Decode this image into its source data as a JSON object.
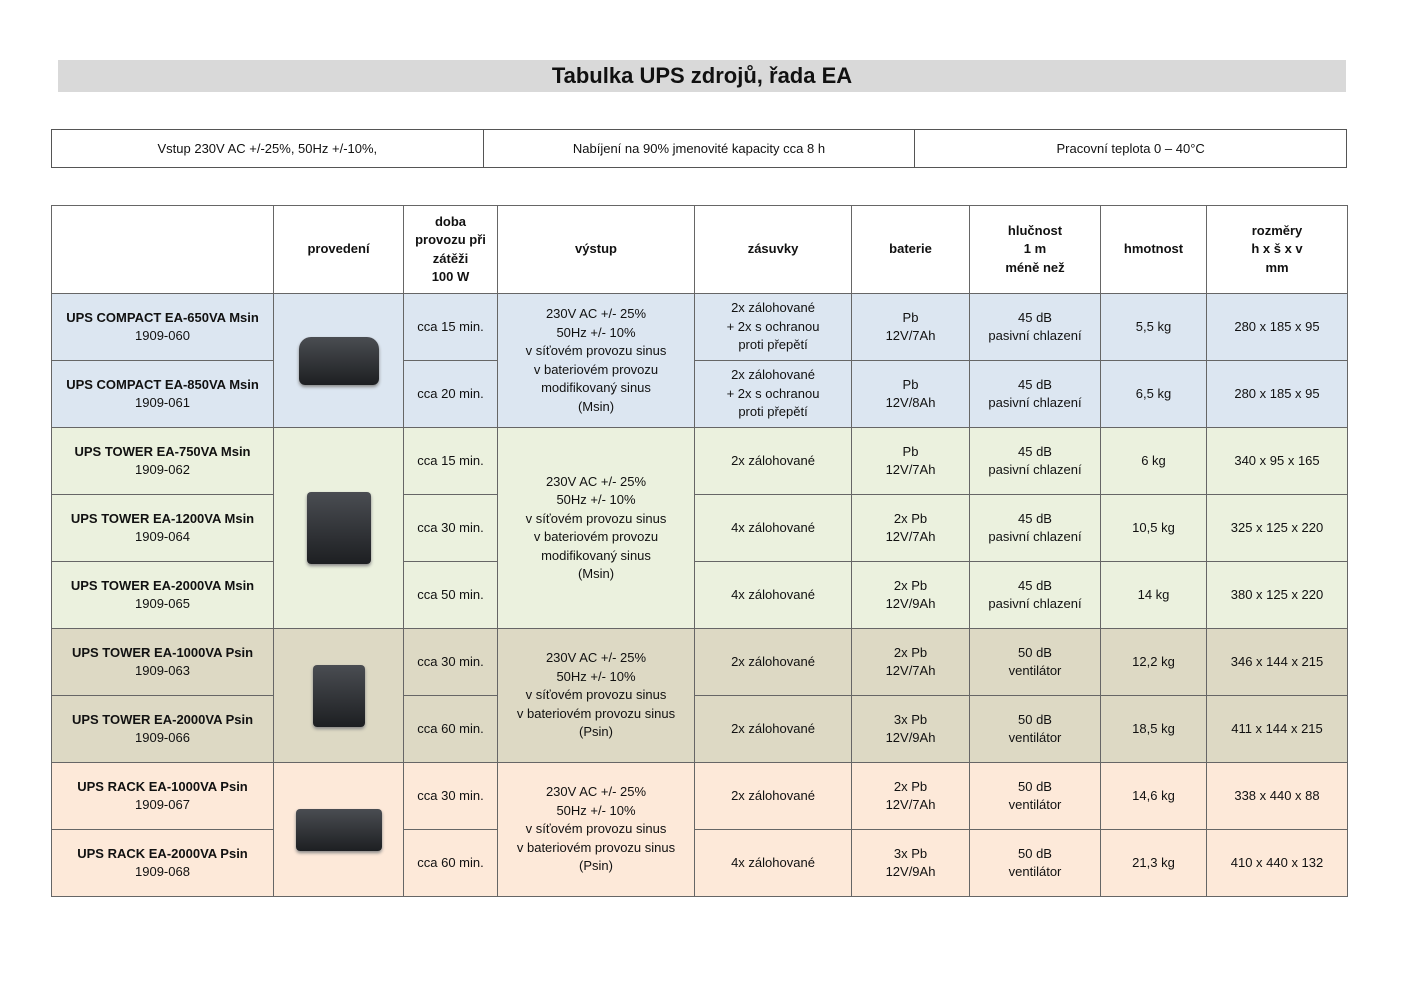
{
  "title": "Tabulka UPS zdrojů, řada EA",
  "info": [
    "Vstup 230V AC +/-25%, 50Hz +/-10%,",
    "Nabíjení na 90% jmenovité kapacity cca 8 h",
    "Pracovní teplota 0 – 40°C"
  ],
  "headers": [
    "",
    "provedení",
    "doba\nprovozu při\nzátěži\n100 W",
    "výstup",
    "zásuvky",
    "baterie",
    "hlučnost\n1 m\nméně než",
    "hmotnost",
    "rozměry\nh x š x v\nmm"
  ],
  "groups": [
    {
      "color": "#dce6f1",
      "image": "ups-compact-image",
      "output": "230V AC +/- 25%\n50Hz +/- 10%\nv síťovém provozu sinus\nv bateriovém provozu\nmodifikovaný sinus\n(Msin)",
      "rows": [
        {
          "name": "UPS COMPACT EA-650VA Msin",
          "code": "1909-060",
          "runtime": "cca 15 min.",
          "sockets": "2x zálohované\n+ 2x s ochranou\nproti přepětí",
          "battery": "Pb\n12V/7Ah",
          "noise": "45 dB\npasivní chlazení",
          "weight": "5,5 kg",
          "dims": "280 x 185 x 95"
        },
        {
          "name": "UPS COMPACT EA-850VA Msin",
          "code": "1909-061",
          "runtime": "cca 20 min.",
          "sockets": "2x zálohované\n+ 2x s ochranou\nproti přepětí",
          "battery": "Pb\n12V/8Ah",
          "noise": "45 dB\npasivní chlazení",
          "weight": "6,5 kg",
          "dims": "280 x 185 x 95"
        }
      ]
    },
    {
      "color": "#ebf1de",
      "image": "ups-tower-msin-image",
      "output": "230V AC +/- 25%\n50Hz +/- 10%\nv síťovém provozu sinus\nv bateriovém provozu\nmodifikovaný sinus\n(Msin)",
      "rows": [
        {
          "name": "UPS TOWER EA-750VA Msin",
          "code": "1909-062",
          "runtime": "cca 15 min.",
          "sockets": "2x zálohované",
          "battery": "Pb\n12V/7Ah",
          "noise": "45 dB\npasivní chlazení",
          "weight": "6 kg",
          "dims": "340 x 95 x 165"
        },
        {
          "name": "UPS TOWER EA-1200VA Msin",
          "code": "1909-064",
          "runtime": "cca 30 min.",
          "sockets": "4x zálohované",
          "battery": "2x  Pb\n12V/7Ah",
          "noise": "45 dB\npasivní chlazení",
          "weight": "10,5 kg",
          "dims": "325 x 125 x 220"
        },
        {
          "name": "UPS TOWER EA-2000VA Msin",
          "code": "1909-065",
          "runtime": "cca 50 min.",
          "sockets": "4x zálohované",
          "battery": "2x Pb\n12V/9Ah",
          "noise": "45 dB\npasivní chlazení",
          "weight": "14 kg",
          "dims": "380 x 125 x 220"
        }
      ]
    },
    {
      "color": "#ddd9c4",
      "image": "ups-tower-psin-image",
      "output": "230V AC +/- 25%\n50Hz +/- 10%\nv síťovém provozu sinus\nv bateriovém provozu sinus\n(Psin)",
      "rows": [
        {
          "name": "UPS TOWER EA-1000VA Psin",
          "code": "1909-063",
          "runtime": "cca 30 min.",
          "sockets": "2x zálohované",
          "battery": "2x  Pb\n12V/7Ah",
          "noise": "50 dB\nventilátor",
          "weight": "12,2 kg",
          "dims": "346 x 144 x 215"
        },
        {
          "name": "UPS TOWER EA-2000VA Psin",
          "code": "1909-066",
          "runtime": "cca 60 min.",
          "sockets": "2x zálohované",
          "battery": "3x Pb\n12V/9Ah",
          "noise": "50 dB\nventilátor",
          "weight": "18,5 kg",
          "dims": "411 x 144 x 215"
        }
      ]
    },
    {
      "color": "#fde9d9",
      "image": "ups-rack-image",
      "output": "230V AC +/- 25%\n50Hz +/- 10%\nv síťovém provozu sinus\nv bateriovém provozu sinus\n(Psin)",
      "rows": [
        {
          "name": "UPS RACK EA-1000VA Psin",
          "code": "1909-067",
          "runtime": "cca 30 min.",
          "sockets": "2x zálohované",
          "battery": "2x  Pb\n12V/7Ah",
          "noise": "50 dB\nventilátor",
          "weight": "14,6 kg",
          "dims": "338 x 440 x 88"
        },
        {
          "name": "UPS RACK EA-2000VA Psin",
          "code": "1909-068",
          "runtime": "cca 60 min.",
          "sockets": "4x zálohované",
          "battery": "3x Pb\n12V/9Ah",
          "noise": "50 dB\nventilátor",
          "weight": "21,3 kg",
          "dims": "410 x 440 x 132"
        }
      ]
    }
  ]
}
